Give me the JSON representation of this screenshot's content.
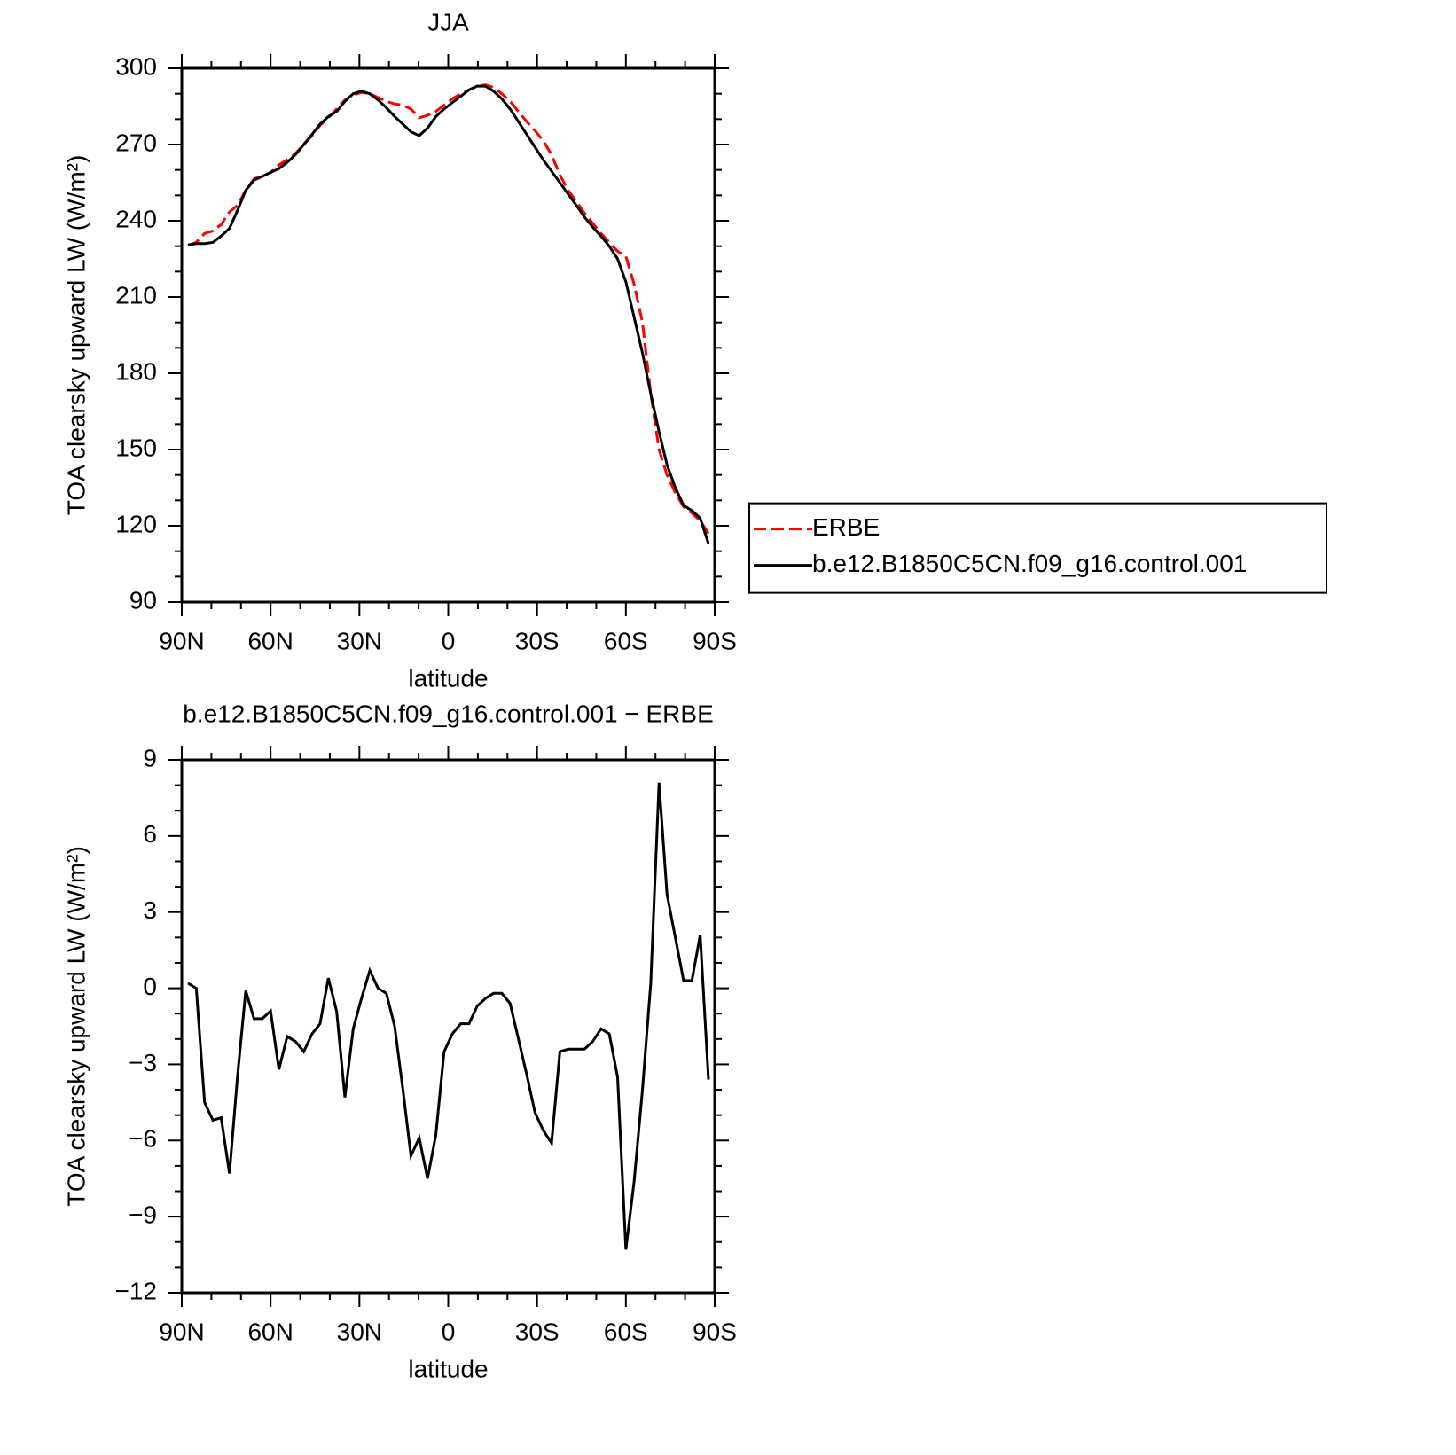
{
  "chart_data": [
    {
      "type": "line",
      "title": "JJA",
      "xlabel": "latitude",
      "ylabel": "TOA clearsky upward LW (W/m²)",
      "x": [
        87.9,
        85.1,
        82.3,
        79.5,
        76.7,
        73.9,
        71.2,
        68.4,
        65.6,
        62.8,
        60.0,
        57.2,
        54.4,
        51.6,
        48.8,
        46.0,
        43.3,
        40.5,
        37.7,
        34.9,
        32.1,
        29.3,
        26.5,
        23.7,
        20.9,
        18.1,
        15.3,
        12.6,
        9.8,
        7.0,
        4.2,
        1.4,
        -1.4,
        -4.2,
        -7.0,
        -9.8,
        -12.6,
        -15.3,
        -18.1,
        -20.9,
        -23.7,
        -26.5,
        -29.3,
        -32.1,
        -34.9,
        -37.7,
        -40.5,
        -43.3,
        -46.0,
        -48.8,
        -51.6,
        -54.4,
        -57.2,
        -60.0,
        -62.8,
        -65.6,
        -68.4,
        -71.2,
        -73.9,
        -76.7,
        -79.5,
        -82.3,
        -85.1,
        -87.9
      ],
      "series": [
        {
          "name": "ERBE",
          "color": "#ff0000",
          "linestyle": "dashed",
          "values": [
            230.3,
            231.5,
            235,
            236,
            238.5,
            243.5,
            246,
            252,
            256.5,
            257.5,
            259,
            262,
            264,
            266.5,
            270,
            273.5,
            277.5,
            280.5,
            284,
            287.5,
            289.5,
            290.5,
            290,
            288.5,
            287,
            286,
            285.5,
            284,
            280.5,
            281.5,
            283,
            285.5,
            288,
            290,
            291.5,
            293,
            293.5,
            292.5,
            290,
            287,
            283,
            279,
            275.5,
            271.5,
            266,
            258,
            252,
            247.5,
            243,
            239,
            235,
            231.5,
            228,
            226,
            215,
            200,
            172,
            150,
            140,
            133,
            127.5,
            125,
            122,
            117
          ]
        },
        {
          "name": "b.e12.B1850C5CN.f09_g16.control.001",
          "color": "#000000",
          "linestyle": "solid",
          "values": [
            230.5,
            231,
            231,
            231.5,
            234,
            237,
            244,
            252,
            256,
            257.5,
            259,
            260.5,
            263,
            266,
            270,
            274,
            278,
            281,
            283,
            287,
            290,
            291,
            290,
            287.5,
            284.5,
            281,
            278,
            275,
            273.5,
            276.5,
            281,
            284,
            286.5,
            289,
            291.5,
            293,
            293,
            291,
            288,
            284,
            279,
            274,
            269,
            264,
            259.5,
            255,
            250.5,
            246,
            241.5,
            237.5,
            234,
            230,
            225,
            216,
            202,
            188,
            172,
            157,
            144,
            135,
            128,
            126,
            123,
            113
          ]
        }
      ],
      "xlim": [
        90,
        -90
      ],
      "xticks": [
        {
          "value": 90,
          "label": "90N"
        },
        {
          "value": 60,
          "label": "60N"
        },
        {
          "value": 30,
          "label": "30N"
        },
        0,
        {
          "value": -30,
          "label": "30S"
        },
        {
          "value": -60,
          "label": "60S"
        },
        {
          "value": -90,
          "label": "90S"
        }
      ],
      "xminorticks": [
        80,
        70,
        50,
        40,
        20,
        10,
        -10,
        -20,
        -40,
        -50,
        -70,
        -80
      ],
      "ylim": [
        90,
        300
      ],
      "yticks": [
        90,
        120,
        150,
        180,
        210,
        240,
        270,
        300
      ],
      "yminorticks": [
        100,
        110,
        130,
        140,
        160,
        170,
        190,
        200,
        220,
        230,
        250,
        260,
        280,
        290
      ],
      "legend": "right"
    },
    {
      "type": "line",
      "title": "b.e12.B1850C5CN.f09_g16.control.001 − ERBE",
      "xlabel": "latitude",
      "ylabel": "TOA clearsky upward LW (W/m²)",
      "x": [
        87.9,
        85.1,
        82.3,
        79.5,
        76.7,
        73.9,
        71.2,
        68.4,
        65.6,
        62.8,
        60.0,
        57.2,
        54.4,
        51.6,
        48.8,
        46.0,
        43.3,
        40.5,
        37.7,
        34.9,
        32.1,
        29.3,
        26.5,
        23.7,
        20.9,
        18.1,
        15.3,
        12.6,
        9.8,
        7.0,
        4.2,
        1.4,
        -1.4,
        -4.2,
        -7.0,
        -9.8,
        -12.6,
        -15.3,
        -18.1,
        -20.9,
        -23.7,
        -26.5,
        -29.3,
        -32.1,
        -34.9,
        -37.7,
        -40.5,
        -43.3,
        -46.0,
        -48.8,
        -51.6,
        -54.4,
        -57.2,
        -60.0,
        -62.8,
        -65.6,
        -68.4,
        -71.2,
        -73.9,
        -76.7,
        -79.5,
        -82.3,
        -85.1,
        -87.9
      ],
      "series": [
        {
          "color": "#000000",
          "linestyle": "solid",
          "values": [
            0.2,
            0,
            -4.5,
            -5.2,
            -5.1,
            -7.3,
            -3.5,
            -0.1,
            -1.2,
            -1.2,
            -0.9,
            -3.2,
            -1.9,
            -2.1,
            -2.5,
            -1.8,
            -1.4,
            0.4,
            -0.9,
            -4.3,
            -1.6,
            -0.4,
            0.7,
            0,
            -0.2,
            -1.5,
            -4,
            -6.6,
            -5.9,
            -7.5,
            -5.8,
            -2.5,
            -1.8,
            -1.4,
            -1.4,
            -0.7,
            -0.4,
            -0.2,
            -0.2,
            -0.6,
            -2,
            -3.4,
            -4.9,
            -5.6,
            -6.1,
            -2.5,
            -2.4,
            -2.4,
            -2.4,
            -2.1,
            -1.6,
            -1.8,
            -3.5,
            -10.3,
            -7.6,
            -4,
            0.2,
            8.1,
            3.7,
            2,
            0.3,
            0.3,
            2.1,
            -3.6
          ]
        }
      ],
      "xlim": [
        90,
        -90
      ],
      "xticks": [
        {
          "value": 90,
          "label": "90N"
        },
        {
          "value": 60,
          "label": "60N"
        },
        {
          "value": 30,
          "label": "30N"
        },
        0,
        {
          "value": -30,
          "label": "30S"
        },
        {
          "value": -60,
          "label": "60S"
        },
        {
          "value": -90,
          "label": "90S"
        }
      ],
      "xminorticks": [
        80,
        70,
        50,
        40,
        20,
        10,
        -10,
        -20,
        -40,
        -50,
        -70,
        -80
      ],
      "ylim": [
        -12,
        9
      ],
      "yticks": [
        {
          "value": -12,
          "label": "−12"
        },
        {
          "value": -9,
          "label": "−9"
        },
        {
          "value": -6,
          "label": "−6"
        },
        {
          "value": -3,
          "label": "−3"
        },
        0,
        3,
        6,
        9
      ],
      "yminorticks": [
        8,
        7,
        5,
        4,
        2,
        1,
        -1,
        -2,
        -4,
        -5,
        -7,
        -8,
        -10,
        -11
      ]
    }
  ]
}
